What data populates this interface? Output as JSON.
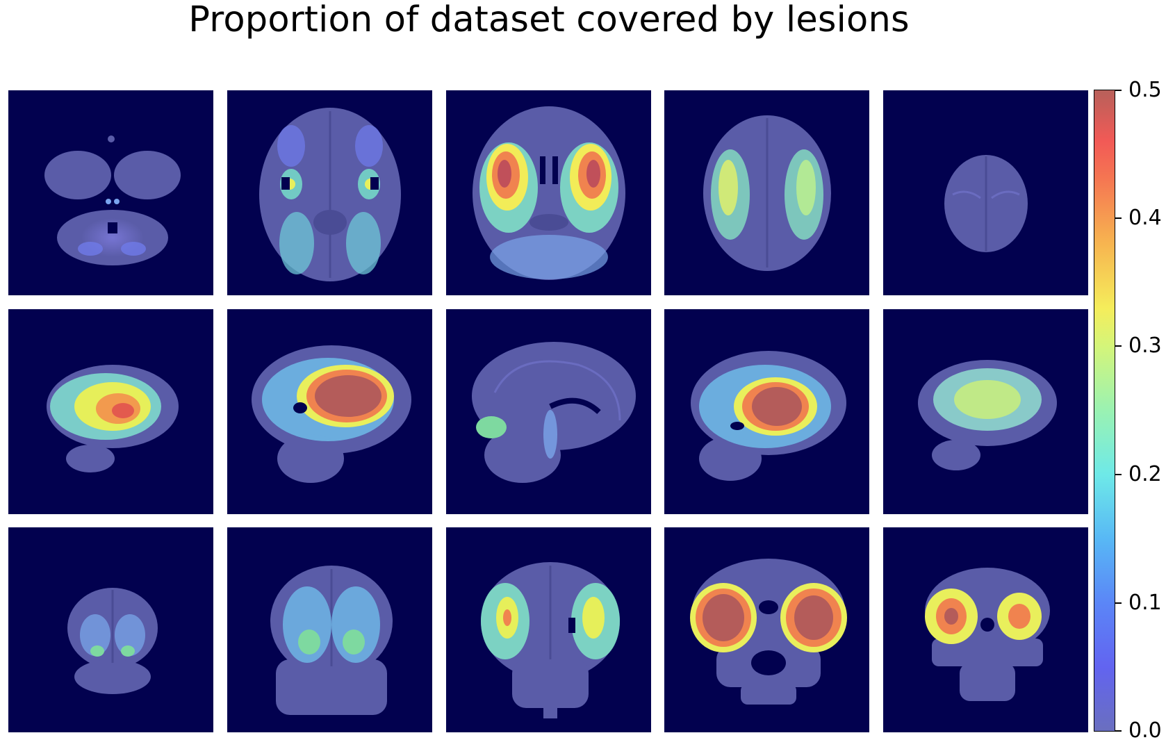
{
  "figure": {
    "title": "Proportion of dataset covered by lesions"
  },
  "colorbar": {
    "colormap": "jet",
    "min": 0.0,
    "max": 0.5,
    "ticks": [
      {
        "value": 0.0,
        "label": "0.0"
      },
      {
        "value": 0.1,
        "label": "0.1"
      },
      {
        "value": 0.2,
        "label": "0.2"
      },
      {
        "value": 0.3,
        "label": "0.3"
      },
      {
        "value": 0.4,
        "label": "0.4"
      },
      {
        "value": 0.5,
        "label": "0.5"
      }
    ]
  },
  "panels": {
    "rows": [
      {
        "view": "axial",
        "count": 5
      },
      {
        "view": "sagittal",
        "count": 5
      },
      {
        "view": "coronal",
        "count": 5
      }
    ],
    "background_color": "#02014f",
    "brain_color": "#5a5ca8"
  }
}
